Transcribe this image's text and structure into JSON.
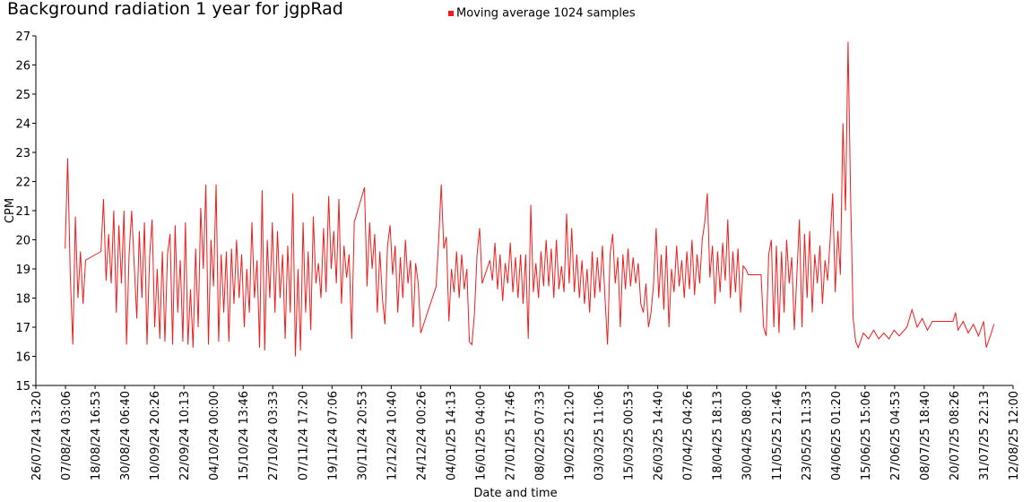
{
  "chart_data": {
    "type": "line",
    "title": "Background radiation 1 year for jgpRad",
    "xlabel": "Date and time",
    "ylabel": "CPM",
    "legend": "top",
    "ylim": [
      15,
      27
    ],
    "yticks": [
      15,
      16,
      17,
      18,
      19,
      20,
      21,
      22,
      23,
      24,
      25,
      26,
      27
    ],
    "xlim": [
      "2024-07-26T13:20Z",
      "2025-08-12T12:00Z"
    ],
    "xticks": [
      {
        "value": "2024-07-26T13:20Z",
        "label": "26/07/24 13:20"
      },
      {
        "value": "2024-08-07T03:06Z",
        "label": "07/08/24 03:06"
      },
      {
        "value": "2024-08-18T16:53Z",
        "label": "18/08/24 16:53"
      },
      {
        "value": "2024-08-30T06:40Z",
        "label": "30/08/24 06:40"
      },
      {
        "value": "2024-09-10T20:26Z",
        "label": "10/09/24 20:26"
      },
      {
        "value": "2024-09-22T10:13Z",
        "label": "22/09/24 10:13"
      },
      {
        "value": "2024-10-04T00:00Z",
        "label": "04/10/24 00:00"
      },
      {
        "value": "2024-10-15T13:46Z",
        "label": "15/10/24 13:46"
      },
      {
        "value": "2024-10-27T03:33Z",
        "label": "27/10/24 03:33"
      },
      {
        "value": "2024-11-07T17:20Z",
        "label": "07/11/24 17:20"
      },
      {
        "value": "2024-11-19T07:06Z",
        "label": "19/11/24 07:06"
      },
      {
        "value": "2024-11-30T20:53Z",
        "label": "30/11/24 20:53"
      },
      {
        "value": "2024-12-12T10:40Z",
        "label": "12/12/24 10:40"
      },
      {
        "value": "2024-12-24T00:26Z",
        "label": "24/12/24 00:26"
      },
      {
        "value": "2025-01-04T14:13Z",
        "label": "04/01/25 14:13"
      },
      {
        "value": "2025-01-16T04:00Z",
        "label": "16/01/25 04:00"
      },
      {
        "value": "2025-01-27T17:46Z",
        "label": "27/01/25 17:46"
      },
      {
        "value": "2025-02-08T07:33Z",
        "label": "08/02/25 07:33"
      },
      {
        "value": "2025-02-19T21:20Z",
        "label": "19/02/25 21:20"
      },
      {
        "value": "2025-03-03T11:06Z",
        "label": "03/03/25 11:06"
      },
      {
        "value": "2025-03-15T00:53Z",
        "label": "15/03/25 00:53"
      },
      {
        "value": "2025-03-26T14:40Z",
        "label": "26/03/25 14:40"
      },
      {
        "value": "2025-04-07T04:26Z",
        "label": "07/04/25 04:26"
      },
      {
        "value": "2025-04-18T18:13Z",
        "label": "18/04/25 18:13"
      },
      {
        "value": "2025-04-30T08:00Z",
        "label": "30/04/25 08:00"
      },
      {
        "value": "2025-05-11T21:46Z",
        "label": "11/05/25 21:46"
      },
      {
        "value": "2025-05-23T11:33Z",
        "label": "23/05/25 11:33"
      },
      {
        "value": "2025-06-04T01:20Z",
        "label": "04/06/25 01:20"
      },
      {
        "value": "2025-06-15T15:06Z",
        "label": "15/06/25 15:06"
      },
      {
        "value": "2025-06-27T04:53Z",
        "label": "27/06/25 04:53"
      },
      {
        "value": "2025-07-08T18:40Z",
        "label": "08/07/25 18:40"
      },
      {
        "value": "2025-07-20T08:26Z",
        "label": "20/07/25 08:26"
      },
      {
        "value": "2025-07-31T22:13Z",
        "label": "31/07/25 22:13"
      },
      {
        "value": "2025-08-12T12:00Z",
        "label": "12/08/25 12:00"
      }
    ],
    "x": [
      "2024-08-07",
      "2024-08-08",
      "2024-08-09",
      "2024-08-10",
      "2024-08-11",
      "2024-08-12",
      "2024-08-13",
      "2024-08-14",
      "2024-08-15",
      "2024-08-21",
      "2024-08-22",
      "2024-08-23",
      "2024-08-24",
      "2024-08-25",
      "2024-08-26",
      "2024-08-27",
      "2024-08-28",
      "2024-08-29",
      "2024-08-30",
      "2024-08-31",
      "2024-09-01",
      "2024-09-02",
      "2024-09-04",
      "2024-09-05",
      "2024-09-06",
      "2024-09-07",
      "2024-09-08",
      "2024-09-09",
      "2024-09-10",
      "2024-09-11",
      "2024-09-12",
      "2024-09-13",
      "2024-09-14",
      "2024-09-15",
      "2024-09-16",
      "2024-09-17",
      "2024-09-18",
      "2024-09-19",
      "2024-09-20",
      "2024-09-21",
      "2024-09-22",
      "2024-09-23",
      "2024-09-24",
      "2024-09-25",
      "2024-09-26",
      "2024-09-27",
      "2024-09-28",
      "2024-09-29",
      "2024-09-30",
      "2024-10-01",
      "2024-10-02",
      "2024-10-03",
      "2024-10-04",
      "2024-10-05",
      "2024-10-06",
      "2024-10-07",
      "2024-10-08",
      "2024-10-09",
      "2024-10-10",
      "2024-10-11",
      "2024-10-12",
      "2024-10-13",
      "2024-10-14",
      "2024-10-15",
      "2024-10-16",
      "2024-10-17",
      "2024-10-18",
      "2024-10-19",
      "2024-10-20",
      "2024-10-21",
      "2024-10-22",
      "2024-10-23",
      "2024-10-24",
      "2024-10-25",
      "2024-10-26",
      "2024-10-27",
      "2024-10-28",
      "2024-10-29",
      "2024-10-30",
      "2024-10-31",
      "2024-11-01",
      "2024-11-02",
      "2024-11-03",
      "2024-11-04",
      "2024-11-05",
      "2024-11-06",
      "2024-11-07",
      "2024-11-08",
      "2024-11-09",
      "2024-11-10",
      "2024-11-11",
      "2024-11-12",
      "2024-11-13",
      "2024-11-14",
      "2024-11-15",
      "2024-11-16",
      "2024-11-17",
      "2024-11-18",
      "2024-11-19",
      "2024-11-20",
      "2024-11-21",
      "2024-11-22",
      "2024-11-23",
      "2024-11-24",
      "2024-11-25",
      "2024-11-26",
      "2024-11-27",
      "2024-11-28",
      "2024-12-02",
      "2024-12-03",
      "2024-12-04",
      "2024-12-05",
      "2024-12-06",
      "2024-12-07",
      "2024-12-08",
      "2024-12-09",
      "2024-12-10",
      "2024-12-11",
      "2024-12-12",
      "2024-12-13",
      "2024-12-14",
      "2024-12-15",
      "2024-12-16",
      "2024-12-17",
      "2024-12-18",
      "2024-12-19",
      "2024-12-20",
      "2024-12-21",
      "2024-12-22",
      "2024-12-23",
      "2024-12-24",
      "2024-12-30",
      "2024-12-31",
      "2025-01-01",
      "2025-01-02",
      "2025-01-03",
      "2025-01-04",
      "2025-01-05",
      "2025-01-06",
      "2025-01-07",
      "2025-01-08",
      "2025-01-09",
      "2025-01-10",
      "2025-01-11",
      "2025-01-12",
      "2025-01-13",
      "2025-01-14",
      "2025-01-15",
      "2025-01-16",
      "2025-01-17",
      "2025-01-20",
      "2025-01-21",
      "2025-01-22",
      "2025-01-23",
      "2025-01-24",
      "2025-01-25",
      "2025-01-26",
      "2025-01-27",
      "2025-01-28",
      "2025-01-29",
      "2025-01-30",
      "2025-01-31",
      "2025-02-01",
      "2025-02-02",
      "2025-02-03",
      "2025-02-04",
      "2025-02-05",
      "2025-02-06",
      "2025-02-07",
      "2025-02-08",
      "2025-02-09",
      "2025-02-10",
      "2025-02-11",
      "2025-02-12",
      "2025-02-13",
      "2025-02-14",
      "2025-02-15",
      "2025-02-16",
      "2025-02-17",
      "2025-02-18",
      "2025-02-19",
      "2025-02-20",
      "2025-02-21",
      "2025-02-22",
      "2025-02-23",
      "2025-02-24",
      "2025-02-25",
      "2025-02-26",
      "2025-02-27",
      "2025-02-28",
      "2025-03-01",
      "2025-03-02",
      "2025-03-03",
      "2025-03-04",
      "2025-03-05",
      "2025-03-06",
      "2025-03-07",
      "2025-03-08",
      "2025-03-09",
      "2025-03-10",
      "2025-03-11",
      "2025-03-12",
      "2025-03-13",
      "2025-03-14",
      "2025-03-15",
      "2025-03-16",
      "2025-03-17",
      "2025-03-18",
      "2025-03-19",
      "2025-03-20",
      "2025-03-21",
      "2025-03-22",
      "2025-03-23",
      "2025-03-24",
      "2025-03-25",
      "2025-03-26",
      "2025-03-27",
      "2025-03-28",
      "2025-03-29",
      "2025-03-30",
      "2025-03-31",
      "2025-04-01",
      "2025-04-02",
      "2025-04-03",
      "2025-04-04",
      "2025-04-05",
      "2025-04-06",
      "2025-04-07",
      "2025-04-08",
      "2025-04-09",
      "2025-04-10",
      "2025-04-11",
      "2025-04-12",
      "2025-04-13",
      "2025-04-14",
      "2025-04-15",
      "2025-04-16",
      "2025-04-17",
      "2025-04-18",
      "2025-04-19",
      "2025-04-20",
      "2025-04-21",
      "2025-04-22",
      "2025-04-23",
      "2025-04-24",
      "2025-04-25",
      "2025-04-26",
      "2025-04-27",
      "2025-04-28",
      "2025-04-29",
      "2025-04-30",
      "2025-05-01",
      "2025-05-06",
      "2025-05-07",
      "2025-05-08",
      "2025-05-09",
      "2025-05-10",
      "2025-05-11",
      "2025-05-12",
      "2025-05-13",
      "2025-05-14",
      "2025-05-15",
      "2025-05-16",
      "2025-05-17",
      "2025-05-18",
      "2025-05-19",
      "2025-05-20",
      "2025-05-21",
      "2025-05-22",
      "2025-05-23",
      "2025-05-24",
      "2025-05-25",
      "2025-05-26",
      "2025-05-27",
      "2025-05-28",
      "2025-05-29",
      "2025-05-30",
      "2025-05-31",
      "2025-06-01",
      "2025-06-02",
      "2025-06-03",
      "2025-06-04",
      "2025-06-05",
      "2025-06-06",
      "2025-06-07",
      "2025-06-08",
      "2025-06-09",
      "2025-06-10",
      "2025-06-11",
      "2025-06-12",
      "2025-06-13",
      "2025-06-15",
      "2025-06-17",
      "2025-06-19",
      "2025-06-21",
      "2025-06-23",
      "2025-06-25",
      "2025-06-27",
      "2025-06-29",
      "2025-07-01",
      "2025-07-02",
      "2025-07-04",
      "2025-07-06",
      "2025-07-08",
      "2025-07-10",
      "2025-07-12",
      "2025-07-14",
      "2025-07-20",
      "2025-07-21",
      "2025-07-22",
      "2025-07-24",
      "2025-07-26",
      "2025-07-28",
      "2025-07-30",
      "2025-08-01",
      "2025-08-02",
      "2025-08-04",
      "2025-08-05"
    ],
    "series": [
      {
        "name": "Moving average 1024 samples",
        "color": "#ee1c1c",
        "values": [
          19.7,
          22.8,
          18.8,
          16.4,
          20.8,
          18.0,
          19.6,
          17.8,
          19.3,
          19.6,
          21.4,
          18.6,
          20.2,
          18.5,
          21.0,
          17.5,
          20.5,
          18.5,
          21.0,
          16.4,
          19.5,
          21.0,
          17.3,
          20.3,
          18.0,
          20.6,
          16.4,
          19.4,
          20.7,
          17.0,
          19.0,
          16.6,
          19.6,
          16.5,
          19.5,
          20.2,
          16.4,
          20.5,
          17.5,
          19.3,
          16.5,
          20.6,
          16.4,
          18.3,
          16.3,
          19.7,
          17.0,
          21.1,
          19.0,
          21.9,
          16.4,
          20.0,
          18.4,
          21.9,
          16.5,
          19.5,
          17.5,
          19.6,
          16.5,
          19.7,
          17.8,
          20.0,
          18.0,
          19.5,
          17.0,
          19.0,
          17.5,
          20.6,
          18.0,
          19.3,
          16.3,
          21.7,
          16.2,
          20.0,
          18.0,
          20.6,
          17.5,
          20.3,
          18.0,
          19.5,
          16.6,
          19.8,
          17.5,
          21.6,
          16.0,
          19.0,
          16.2,
          20.6,
          17.5,
          19.6,
          16.9,
          20.8,
          18.5,
          19.2,
          18.0,
          20.4,
          18.2,
          21.5,
          19.0,
          20.3,
          18.5,
          21.4,
          17.8,
          19.8,
          18.7,
          19.5,
          16.6,
          20.6,
          21.8,
          18.4,
          20.6,
          19.0,
          20.2,
          17.5,
          19.6,
          18.0,
          17.1,
          19.8,
          20.5,
          18.8,
          19.8,
          17.5,
          19.4,
          18.0,
          20.0,
          18.5,
          19.3,
          17.0,
          19.2,
          18.5,
          16.8,
          18.4,
          20.0,
          21.9,
          19.7,
          20.1,
          17.2,
          19.0,
          18.2,
          19.6,
          18.0,
          19.5,
          18.3,
          19.0,
          16.5,
          16.4,
          17.5,
          19.5,
          20.4,
          18.5,
          19.3,
          18.6,
          19.9,
          18.3,
          19.5,
          17.9,
          19.2,
          18.5,
          19.9,
          18.2,
          19.4,
          18.0,
          19.5,
          17.8,
          19.5,
          16.6,
          21.2,
          18.2,
          19.2,
          18.0,
          19.6,
          18.4,
          20.0,
          18.4,
          19.7,
          18.0,
          20.0,
          18.3,
          19.1,
          18.2,
          20.9,
          18.5,
          20.4,
          18.2,
          19.5,
          18.0,
          19.3,
          17.8,
          19.0,
          17.5,
          19.6,
          18.0,
          19.4,
          18.2,
          19.8,
          18.0,
          16.4,
          19.5,
          20.2,
          18.5,
          19.4,
          17.0,
          19.5,
          18.3,
          19.7,
          18.4,
          19.4,
          18.5,
          19.2,
          17.8,
          17.5,
          18.5,
          17.0,
          17.5,
          18.5,
          20.4,
          18.0,
          19.5,
          17.6,
          19.8,
          17.0,
          19.0,
          18.2,
          19.8,
          18.4,
          19.3,
          18.0,
          19.6,
          18.3,
          20.0,
          18.1,
          19.5,
          18.5,
          20.0,
          20.6,
          21.6,
          18.7,
          19.8,
          17.8,
          19.6,
          18.2,
          19.9,
          18.6,
          20.7,
          18.0,
          19.6,
          18.2,
          19.7,
          17.5,
          19.1,
          19.0,
          18.8,
          18.8,
          17.0,
          16.7,
          19.5,
          20.0,
          17.0,
          19.8,
          16.8,
          19.6,
          17.5,
          20.0,
          18.5,
          19.4,
          16.9,
          18.8,
          20.7,
          17.0,
          20.2,
          18.0,
          20.3,
          17.5,
          19.5,
          18.5,
          19.8,
          17.8,
          19.3,
          18.6,
          20.0,
          21.6,
          18.2,
          20.3,
          18.8,
          24.0,
          21.0,
          26.8,
          21.5,
          17.3,
          16.5,
          16.3,
          16.8,
          16.6,
          16.9,
          16.6,
          16.8,
          16.6,
          16.9,
          16.7,
          16.9,
          17.0,
          17.6,
          17.0,
          17.3,
          16.9,
          17.2,
          17.2,
          17.2,
          17.5,
          16.9,
          17.2,
          16.8,
          17.1,
          16.7,
          17.2,
          16.3,
          16.8,
          17.1
        ]
      }
    ]
  }
}
